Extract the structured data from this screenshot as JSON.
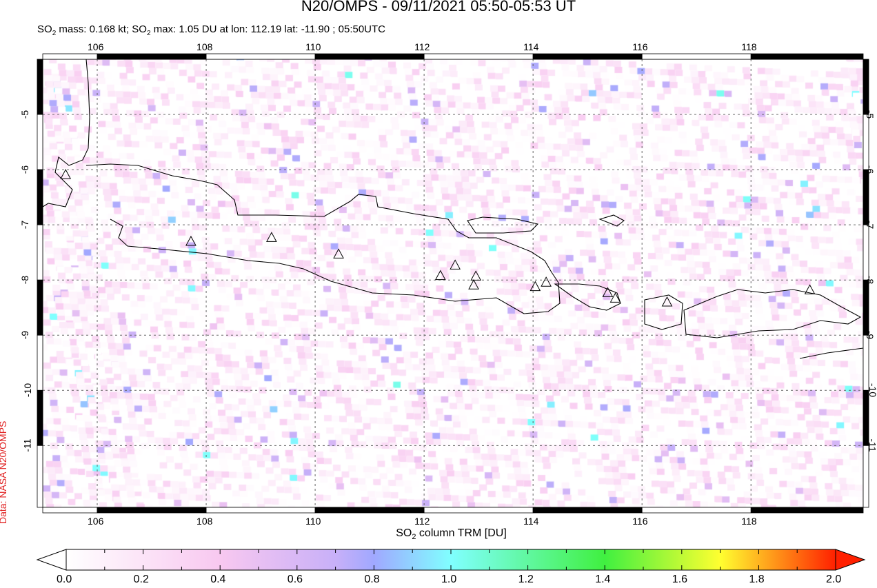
{
  "title": "N20/OMPS - 09/11/2021 05:50-05:53 UT",
  "subtitle": {
    "so2": "SO",
    "sub": "2",
    "mass": " mass: 0.168 kt; ",
    "so2b": "SO",
    "subb": "2",
    "rest": " max: 1.05 DU at lon: 112.19 lat: -11.90 ; 05:50UTC"
  },
  "credit": "Data: NASA N20/OMPS",
  "map": {
    "lon_range": [
      105.0,
      120.06
    ],
    "lat_range": [
      -12.12,
      -4.0
    ],
    "lon_ticks": [
      "106",
      "108",
      "110",
      "112",
      "114",
      "116",
      "118"
    ],
    "lat_ticks": [
      "-5",
      "-6",
      "-7",
      "-8",
      "-9",
      "-10",
      "-11"
    ],
    "gridlines": true,
    "volcanoes": [
      [
        105.42,
        -6.1
      ],
      [
        107.72,
        -7.31
      ],
      [
        109.2,
        -7.24
      ],
      [
        110.43,
        -7.54
      ],
      [
        112.3,
        -7.93
      ],
      [
        112.57,
        -7.74
      ],
      [
        112.95,
        -7.94
      ],
      [
        112.91,
        -8.1
      ],
      [
        114.04,
        -8.13
      ],
      [
        114.24,
        -8.05
      ],
      [
        115.37,
        -8.24
      ],
      [
        115.51,
        -8.34
      ],
      [
        116.46,
        -8.41
      ],
      [
        119.08,
        -8.19
      ]
    ],
    "so2_max": {
      "value_du": 1.05,
      "lon": 112.19,
      "lat": -11.9
    }
  },
  "colorbar": {
    "title_pre": "SO",
    "title_sub": "2",
    "title_post": " column TRM [DU]",
    "range": [
      0.0,
      2.0
    ],
    "labels": [
      "0.0",
      "0.2",
      "0.4",
      "0.6",
      "0.8",
      "1.0",
      "1.2",
      "1.4",
      "1.6",
      "1.8",
      "2.0"
    ],
    "stops": [
      [
        "#ffffff",
        0
      ],
      [
        "#f8c8f0",
        0.2
      ],
      [
        "#c8b0f8",
        0.35
      ],
      [
        "#a0a8ff",
        0.4
      ],
      [
        "#80ffff",
        0.5
      ],
      [
        "#40f040",
        0.7
      ],
      [
        "#ffff30",
        0.85
      ],
      [
        "#ff2000",
        1.0
      ]
    ]
  }
}
